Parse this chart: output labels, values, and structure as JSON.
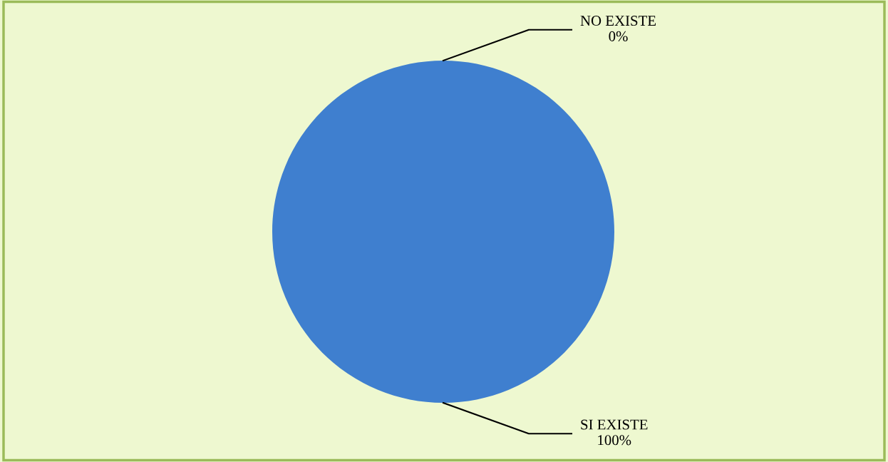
{
  "chart_data": {
    "type": "pie",
    "categories": [
      "NO EXISTE",
      "SI EXISTE"
    ],
    "values": [
      0,
      100
    ],
    "colors": [
      "#c0504d",
      "#3f7fcf"
    ],
    "value_labels": [
      "0%",
      "100%"
    ]
  }
}
